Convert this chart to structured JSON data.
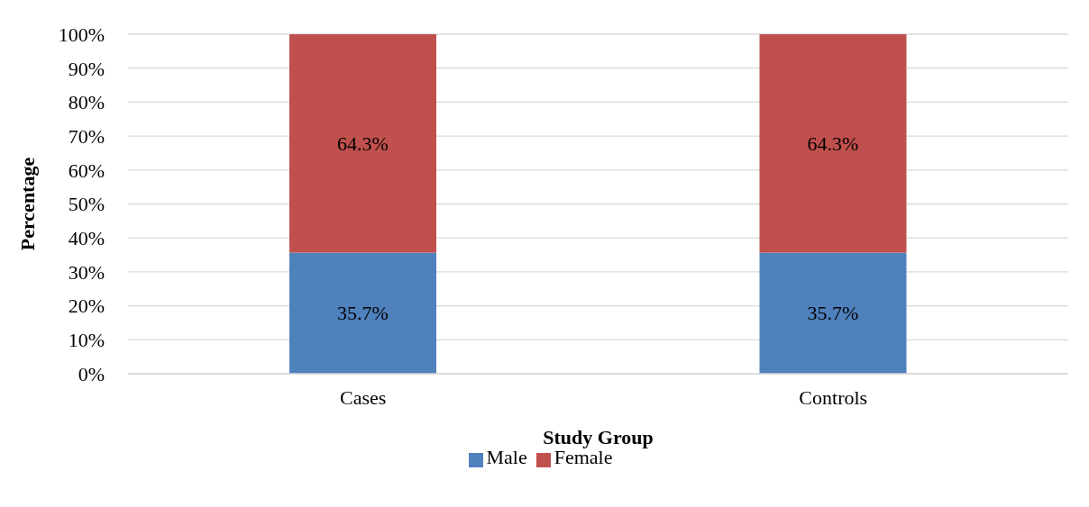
{
  "chart_data": {
    "type": "bar",
    "stacked": true,
    "xlabel": "Study Group",
    "ylabel": "Percentage",
    "categories": [
      "Cases",
      "Controls"
    ],
    "series": [
      {
        "name": "Male",
        "color": "#4f81bd",
        "values": [
          35.7,
          35.7
        ],
        "value_labels": [
          "35.7%",
          "35.7%"
        ]
      },
      {
        "name": "Female",
        "color": "#c0504d",
        "values": [
          64.3,
          64.3
        ],
        "value_labels": [
          "64.3%",
          "64.3%"
        ]
      }
    ],
    "ylim": [
      0,
      100
    ],
    "yticks": [
      {
        "value": 0,
        "label": "0%"
      },
      {
        "value": 10,
        "label": "10%"
      },
      {
        "value": 20,
        "label": "20%"
      },
      {
        "value": 30,
        "label": "30%"
      },
      {
        "value": 40,
        "label": "40%"
      },
      {
        "value": 50,
        "label": "50%"
      },
      {
        "value": 60,
        "label": "60%"
      },
      {
        "value": 70,
        "label": "70%"
      },
      {
        "value": 80,
        "label": "80%"
      },
      {
        "value": 90,
        "label": "90%"
      },
      {
        "value": 100,
        "label": "100%"
      }
    ],
    "grid": "y",
    "legend": "bottom"
  }
}
